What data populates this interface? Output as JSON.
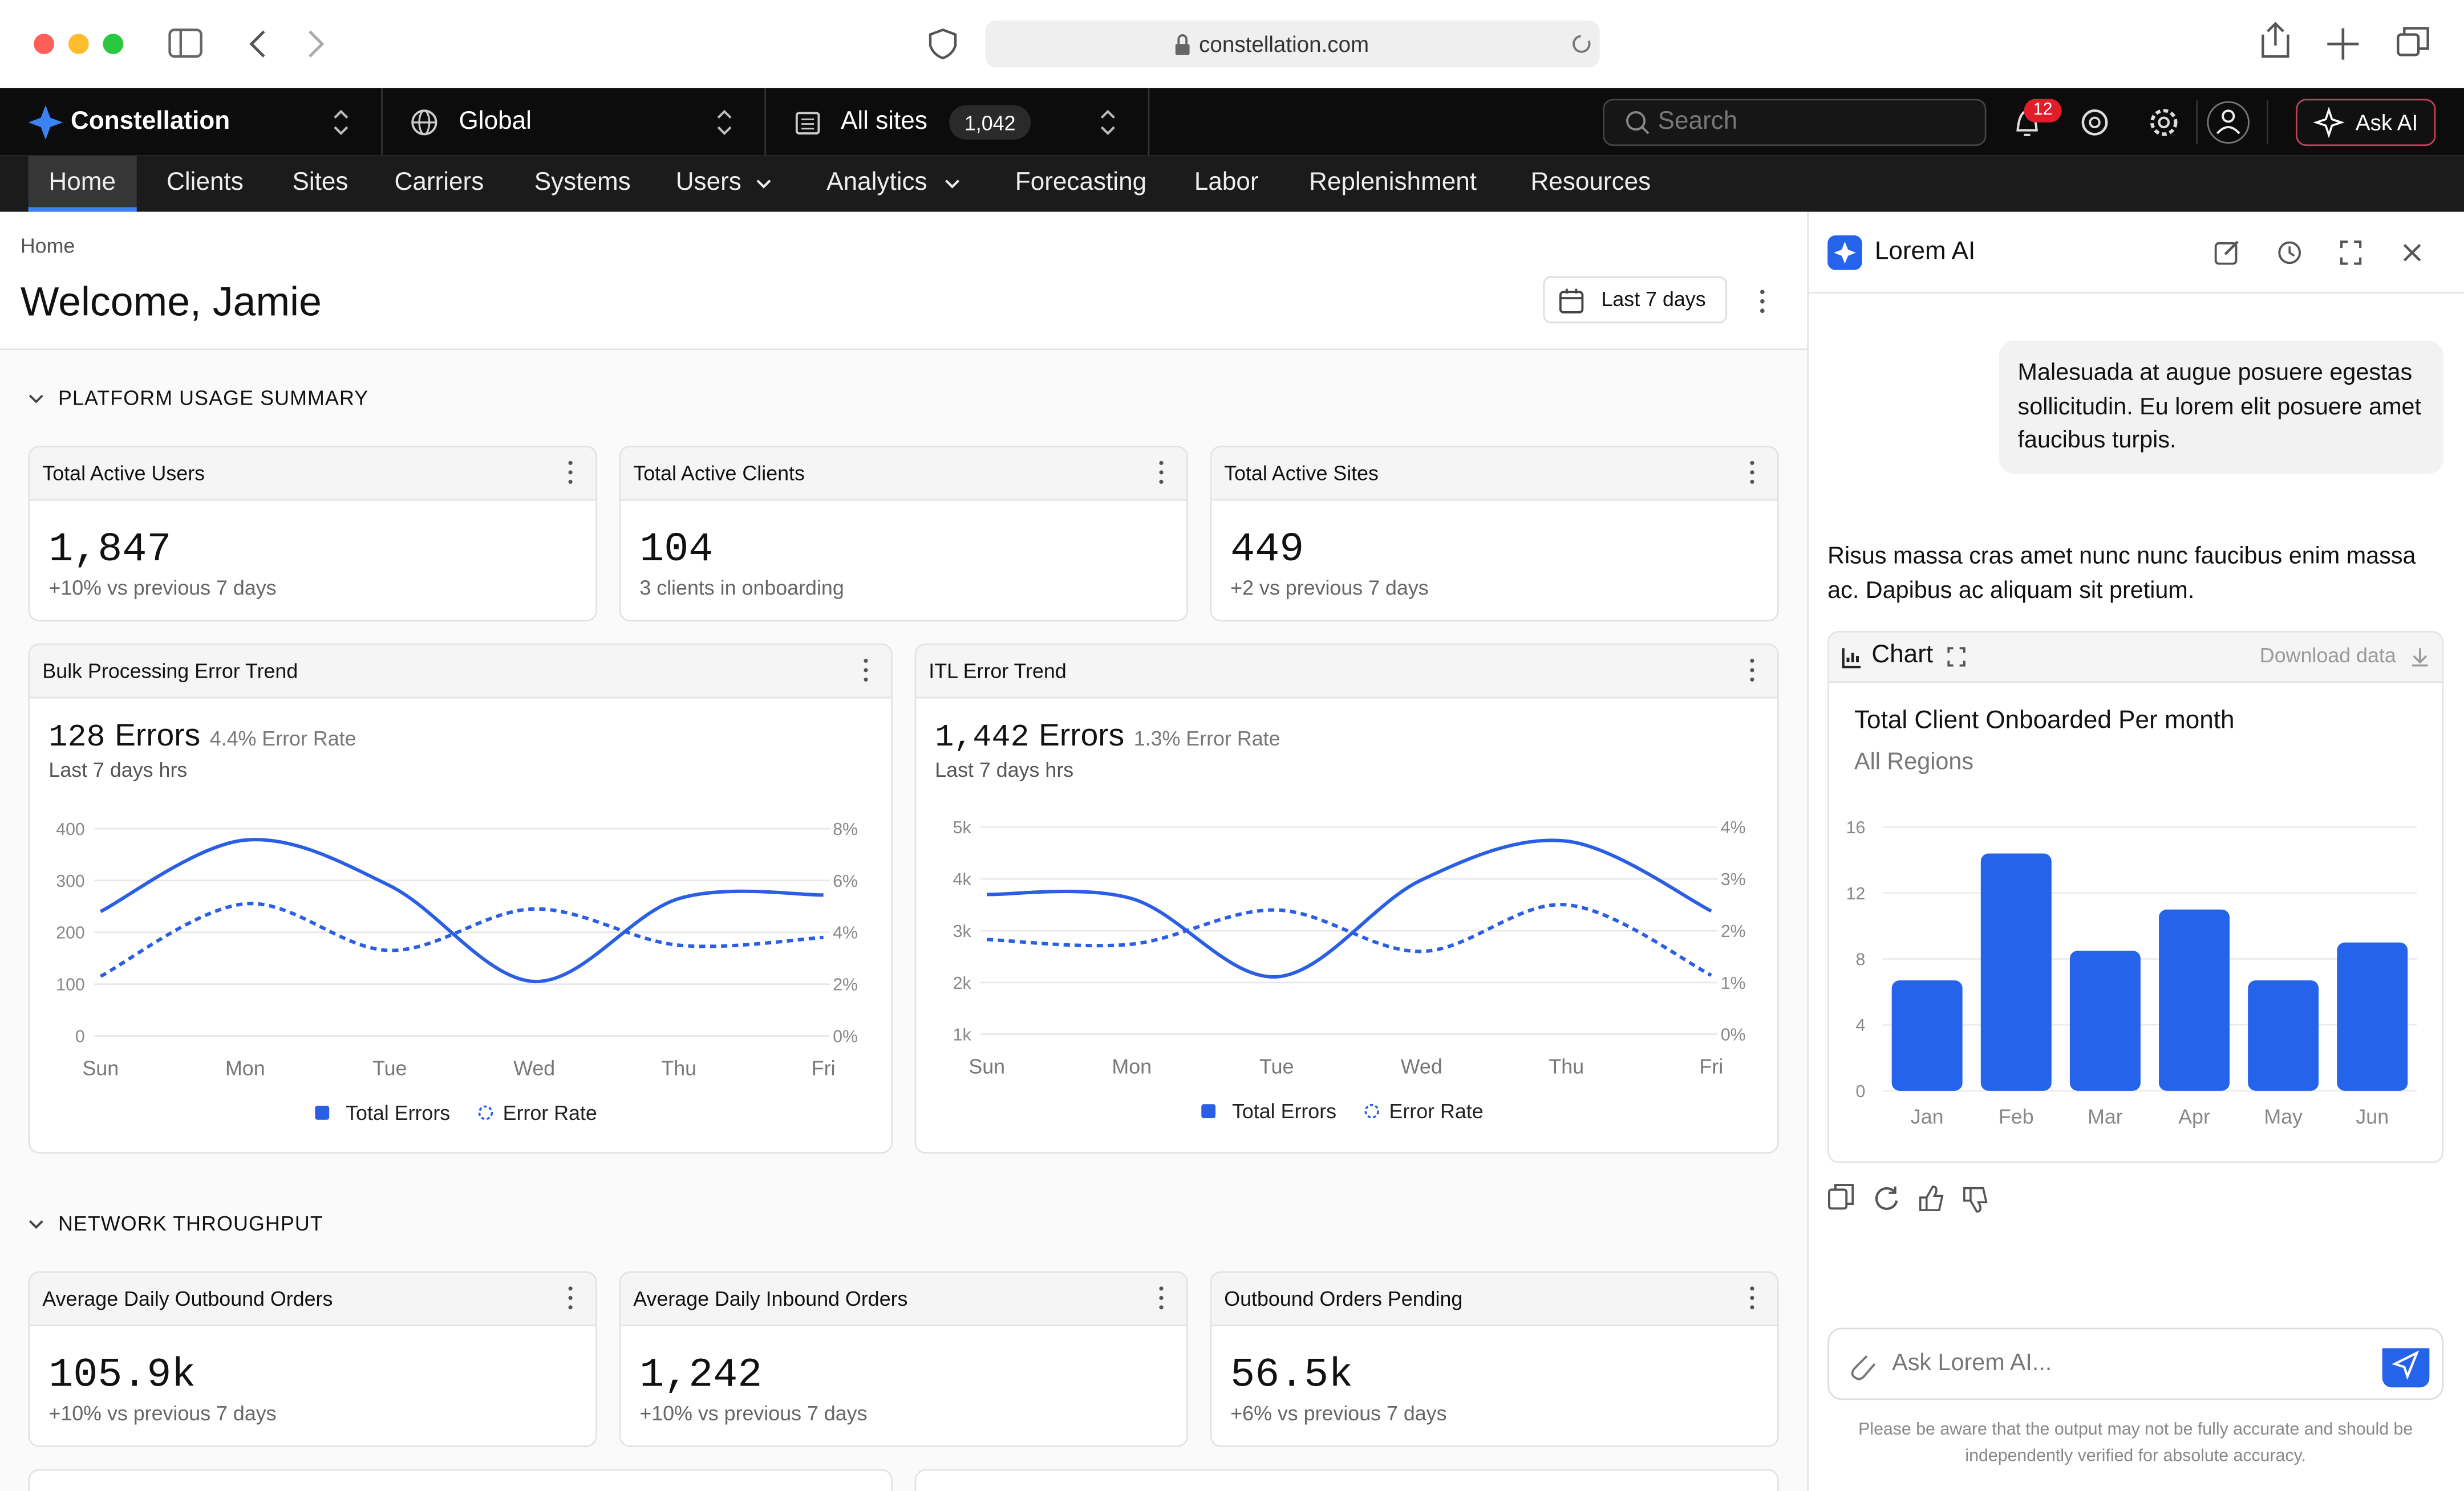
{
  "browser": {
    "url": "constellation.com"
  },
  "topbar": {
    "brand": "Constellation",
    "scope": "Global",
    "sites": "All sites",
    "sites_count": "1,042",
    "search": "Search",
    "notifications": "12",
    "ask_ai": "Ask AI"
  },
  "nav": [
    "Home",
    "Clients",
    "Sites",
    "Carriers",
    "Systems",
    "Users",
    "Analytics",
    "Forecasting",
    "Labor",
    "Replenishment",
    "Resources"
  ],
  "header": {
    "breadcrumb": "Home",
    "title": "Welcome, Jamie",
    "date_range": "Last 7 days"
  },
  "sections": [
    {
      "title": "PLATFORM USAGE SUMMARY",
      "kpis": [
        {
          "label": "Total Active Users",
          "value": "1,847",
          "note": "+10% vs previous 7 days"
        },
        {
          "label": "Total Active Clients",
          "value": "104",
          "note": "3 clients in onboarding"
        },
        {
          "label": "Total Active Sites",
          "value": "449",
          "note": "+2 vs previous 7 days"
        }
      ],
      "trend_cards": [
        {
          "title": "Bulk Processing Error Trend",
          "value": "128",
          "unit": "Errors",
          "rate": "4.4% Error Rate",
          "period": "Last 7 days hrs",
          "chart": {
            "type": "line",
            "categories": [
              "Sun",
              "Mon",
              "Tue",
              "Wed",
              "Thu",
              "Fri"
            ],
            "series": [
              {
                "name": "Total Errors",
                "color": "#2b5fe3",
                "values": [
                  240,
                  378,
                  290,
                  105,
                  265,
                  272
                ]
              },
              {
                "name": "Error Rate",
                "color": "#2b5fe3",
                "axis": "y2",
                "dashed": true,
                "values": [
                  2.3,
                  5.1,
                  3.3,
                  4.9,
                  3.5,
                  3.8
                ]
              }
            ],
            "ylim": [
              0,
              400
            ],
            "yticks": [
              0,
              100,
              200,
              300,
              400
            ],
            "y2lim": [
              0,
              8
            ],
            "y2ticks": [
              {
                "value": 0,
                "label": "0%"
              },
              {
                "value": 2,
                "label": "2%"
              },
              {
                "value": 4,
                "label": "4%"
              },
              {
                "value": 6,
                "label": "6%"
              },
              {
                "value": 8,
                "label": "8%"
              }
            ],
            "grid": true
          }
        },
        {
          "title": "ITL Error Trend",
          "value": "1,442",
          "unit": "Errors",
          "rate": "1.3% Error Rate",
          "period": "Last 7 days hrs",
          "chart": {
            "type": "line",
            "categories": [
              "Sun",
              "Mon",
              "Tue",
              "Wed",
              "Thu",
              "Fri"
            ],
            "series": [
              {
                "name": "Total Errors",
                "color": "#2b5fe3",
                "values": [
                  3700,
                  3620,
                  2110,
                  3980,
                  4730,
                  3380
                ]
              },
              {
                "name": "Error Rate",
                "color": "#2b5fe3",
                "axis": "y2",
                "dashed": true,
                "values": [
                  1.83,
                  1.74,
                  2.4,
                  1.6,
                  2.5,
                  1.14
                ]
              }
            ],
            "ylim": [
              1000,
              5000
            ],
            "yticks": [
              {
                "value": 1000,
                "label": "1k"
              },
              {
                "value": 2000,
                "label": "2k"
              },
              {
                "value": 3000,
                "label": "3k"
              },
              {
                "value": 4000,
                "label": "4k"
              },
              {
                "value": 5000,
                "label": "5k"
              }
            ],
            "y2lim": [
              0,
              4
            ],
            "y2ticks": [
              {
                "value": 0,
                "label": "0%"
              },
              {
                "value": 1,
                "label": "1%"
              },
              {
                "value": 2,
                "label": "2%"
              },
              {
                "value": 3,
                "label": "3%"
              },
              {
                "value": 4,
                "label": "4%"
              }
            ],
            "grid": true
          }
        }
      ]
    },
    {
      "title": "NETWORK THROUGHPUT",
      "kpis": [
        {
          "label": "Average Daily Outbound Orders",
          "value": "105.9k",
          "note": "+10% vs previous 7 days"
        },
        {
          "label": "Average Daily Inbound Orders",
          "value": "1,242",
          "note": "+10% vs previous 7 days"
        },
        {
          "label": "Outbound Orders Pending",
          "value": "56.5k",
          "note": "+6% vs previous 7 days"
        }
      ]
    }
  ],
  "ai_panel": {
    "title": "Lorem AI",
    "user_message": "Malesuada at augue posuere egestas sollicitudin. Eu lorem elit posuere amet faucibus turpis.",
    "response": "Risus massa cras amet nunc nunc faucibus enim massa ac. Dapibus ac aliquam sit pretium.",
    "chart_label": "Chart",
    "download": "Download data",
    "chart": {
      "type": "bar",
      "title": "Total Client Onboarded Per month",
      "subtitle": "All Regions",
      "categories": [
        "Jan",
        "Feb",
        "Mar",
        "Apr",
        "May",
        "Jun"
      ],
      "values": [
        6.7,
        14.4,
        8.5,
        11,
        6.7,
        9
      ],
      "color": "#2563eb",
      "ylim": [
        0,
        16
      ],
      "yticks": [
        0,
        4,
        8,
        12,
        16
      ],
      "grid": true
    },
    "input_placeholder": "Ask Lorem AI...",
    "disclaimer": "Please be aware that the output may not be fully accurate and should be independently verified for absolute accuracy."
  }
}
